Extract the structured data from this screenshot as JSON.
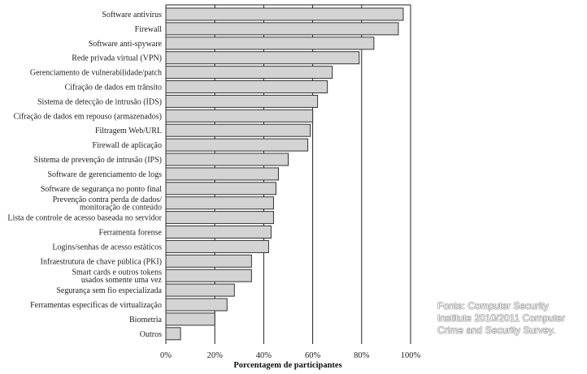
{
  "chart_data": {
    "type": "bar",
    "orientation": "horizontal",
    "xlabel": "Porcentagem de participantes",
    "xlim": [
      0,
      100
    ],
    "xticks": [
      "0%",
      "20%",
      "40%",
      "60%",
      "80%",
      "100%"
    ],
    "grid": true,
    "categories": [
      [
        "Software antivírus"
      ],
      [
        "Firewall"
      ],
      [
        "Software anti-spyware"
      ],
      [
        "Rede privada virtual (VPN)"
      ],
      [
        "Gerenciamento de vulnerabilidade/patch"
      ],
      [
        "Cifração de dados em trânsito"
      ],
      [
        "Sistema de detecção de intrusão (IDS)"
      ],
      [
        "Cifração de dados em repouso (armazenados)"
      ],
      [
        "Filtragem Web/URL"
      ],
      [
        "Firewall de aplicação"
      ],
      [
        "Sistema de prevenção de intrusão (IPS)"
      ],
      [
        "Software de gerenciamento de logs"
      ],
      [
        "Software de segurança no ponto final"
      ],
      [
        "Prevenção contra perda de dados/",
        "monitoração de conteúdo"
      ],
      [
        "Lista de controle de acesso baseada no servidor"
      ],
      [
        "Ferramenta forense"
      ],
      [
        "Logins/senhas de acesso estáticos"
      ],
      [
        "Infraestrutura de chave pública (PKI)"
      ],
      [
        "Smart cards e outros tokens",
        "usados somente uma vez"
      ],
      [
        "Segurança sem fio especializada"
      ],
      [
        "Ferramentas específicas de virtualização"
      ],
      [
        "Biometria"
      ],
      [
        "Outros"
      ]
    ],
    "values": [
      97,
      95,
      85,
      79,
      68,
      66,
      62,
      60,
      59,
      58,
      50,
      46,
      45,
      44,
      44,
      43,
      42,
      35,
      35,
      28,
      25,
      20,
      6
    ]
  },
  "source_note": [
    "Fonte: Computer Security",
    "Institute 2010/2011 Computer",
    "Crime and Security Survey."
  ]
}
